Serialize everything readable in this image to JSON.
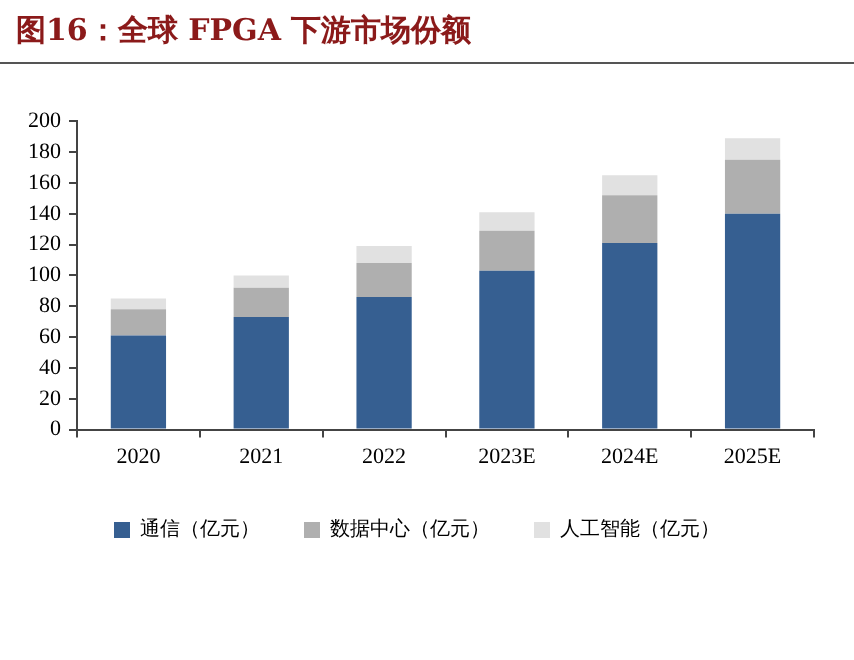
{
  "chart_data": {
    "type": "bar",
    "title": "图16：全球 FPGA 下游市场份额",
    "categories": [
      "2020",
      "2021",
      "2022",
      "2023E",
      "2024E",
      "2025E"
    ],
    "stacked": true,
    "series": [
      {
        "name": "通信（亿元）",
        "color": "#365f91",
        "values": [
          61,
          73,
          86,
          103,
          121,
          140
        ]
      },
      {
        "name": "数据中心（亿元）",
        "color": "#afafaf",
        "values": [
          17,
          19,
          22,
          26,
          31,
          35
        ]
      },
      {
        "name": "人工智能（亿元）",
        "color": "#e1e1e1",
        "values": [
          7,
          8,
          11,
          12,
          13,
          14
        ]
      }
    ],
    "ylim": [
      0,
      200
    ],
    "yticks": [
      0,
      20,
      40,
      60,
      80,
      100,
      120,
      140,
      160,
      180,
      200
    ],
    "legend": "bottom"
  }
}
